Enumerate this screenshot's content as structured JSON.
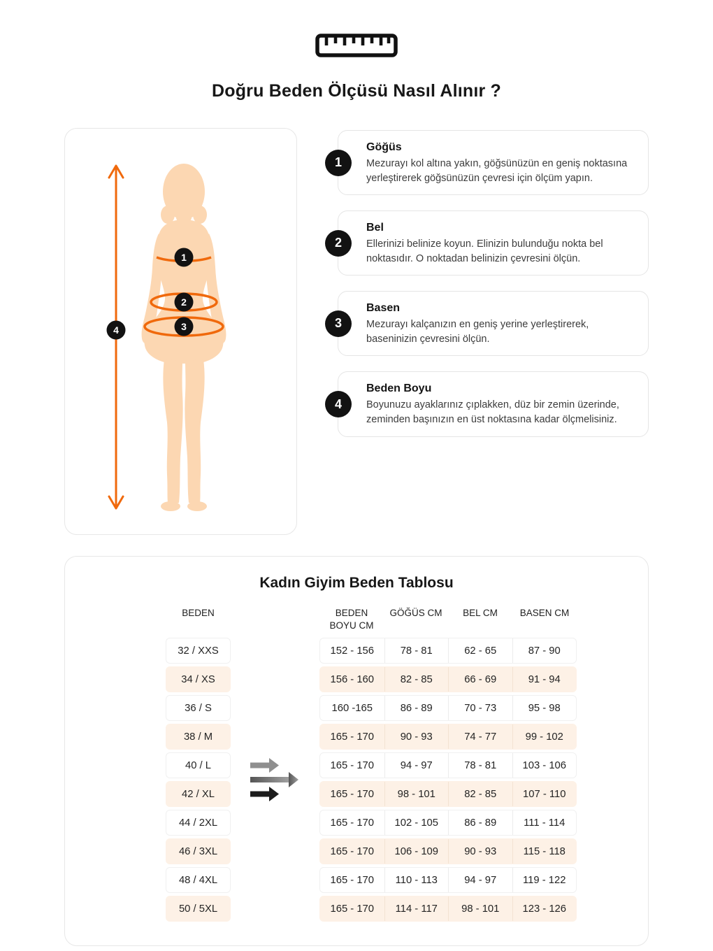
{
  "header": {
    "title": "Doğru Beden Ölçüsü Nasıl Alınır ?"
  },
  "icons": {
    "top": "ruler-icon",
    "figure": "female-body-silhouette",
    "height_measure": "vertical-double-arrow-icon",
    "row_pointers": "right-arrow-icons"
  },
  "figure": {
    "badges": [
      "1",
      "2",
      "3",
      "4"
    ]
  },
  "instructions": [
    {
      "number": "1",
      "title": "Göğüs",
      "text": "Mezurayı kol altına yakın, göğsünüzün en geniş noktasına yerleştirerek göğsünüzün çevresi için ölçüm yapın."
    },
    {
      "number": "2",
      "title": "Bel",
      "text": "Ellerinizi belinize koyun. Elinizin bulunduğu nokta bel noktasıdır. O noktadan belinizin çevresini ölçün."
    },
    {
      "number": "3",
      "title": "Basen",
      "text": "Mezurayı kalçanızın en geniş yerine yerleştirerek, baseninizin çevresini ölçün."
    },
    {
      "number": "4",
      "title": "Beden Boyu",
      "text": "Boyunuzu ayaklarınız çıplakken, düz bir zemin üzerinde, zeminden başınızın en üst noktasına kadar ölçmelisiniz."
    }
  ],
  "size_table": {
    "title": "Kadın Giyim Beden Tablosu",
    "columns": [
      "BEDEN",
      "BEDEN BOYU CM",
      "GÖĞÜS CM",
      "BEL CM",
      "BASEN CM"
    ],
    "rows": [
      [
        "32 / XXS",
        "152 - 156",
        "78 - 81",
        "62 - 65",
        "87 - 90"
      ],
      [
        "34 / XS",
        "156 - 160",
        "82 - 85",
        "66 - 69",
        "91 - 94"
      ],
      [
        "36 / S",
        "160 -165",
        "86 - 89",
        "70 - 73",
        "95 - 98"
      ],
      [
        "38 / M",
        "165 - 170",
        "90 - 93",
        "74 - 77",
        "99 - 102"
      ],
      [
        "40 / L",
        "165 - 170",
        "94 - 97",
        "78 - 81",
        "103 - 106"
      ],
      [
        "42 / XL",
        "165 - 170",
        "98 - 101",
        "82 - 85",
        "107 - 110"
      ],
      [
        "44 / 2XL",
        "165 - 170",
        "102 - 105",
        "86 - 89",
        "111 - 114"
      ],
      [
        "46 / 3XL",
        "165 - 170",
        "106 - 109",
        "90 - 93",
        "115 - 118"
      ],
      [
        "48 / 4XL",
        "165 - 170",
        "110 - 113",
        "94 - 97",
        "119 - 122"
      ],
      [
        "50 / 5XL",
        "165 - 170",
        "114 - 117",
        "98 - 101",
        "123 - 126"
      ]
    ]
  },
  "colors": {
    "accent_orange": "#f0690c",
    "skin": "#fcd7b2",
    "stripe_row": "#fdf1e6",
    "badge": "#121212"
  }
}
